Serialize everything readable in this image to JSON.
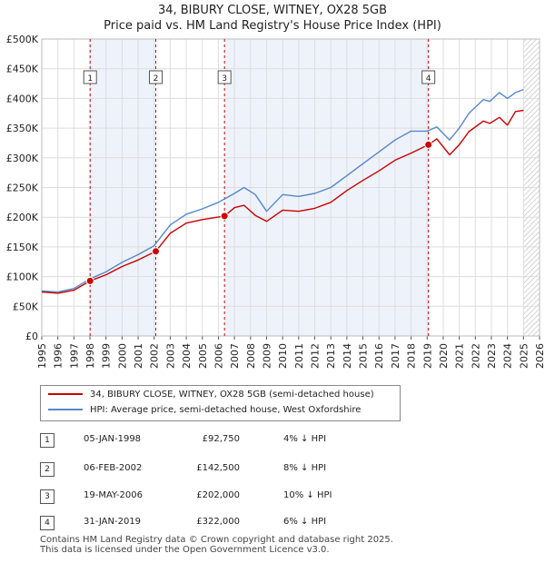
{
  "title": {
    "line1": "34, BIBURY CLOSE, WITNEY, OX28 5GB",
    "line2": "Price paid vs. HM Land Registry's House Price Index (HPI)"
  },
  "chart_data": {
    "type": "line",
    "xlim": [
      1995,
      2026
    ],
    "ylim": [
      0,
      500000
    ],
    "x_ticks": [
      "1995",
      "1996",
      "1997",
      "1998",
      "1999",
      "2000",
      "2001",
      "2002",
      "2003",
      "2004",
      "2005",
      "2006",
      "2007",
      "2008",
      "2009",
      "2010",
      "2011",
      "2012",
      "2013",
      "2014",
      "2015",
      "2016",
      "2017",
      "2018",
      "2019",
      "2020",
      "2021",
      "2022",
      "2023",
      "2024",
      "2025",
      "2026"
    ],
    "y_ticks": [
      {
        "value": 0,
        "label": "£0"
      },
      {
        "value": 50000,
        "label": "£50K"
      },
      {
        "value": 100000,
        "label": "£100K"
      },
      {
        "value": 150000,
        "label": "£150K"
      },
      {
        "value": 200000,
        "label": "£200K"
      },
      {
        "value": 250000,
        "label": "£250K"
      },
      {
        "value": 300000,
        "label": "£300K"
      },
      {
        "value": 350000,
        "label": "£350K"
      },
      {
        "value": 400000,
        "label": "£400K"
      },
      {
        "value": 450000,
        "label": "£450K"
      },
      {
        "value": 500000,
        "label": "£500K"
      }
    ],
    "grid": true,
    "shaded_periods": [
      [
        1998.01,
        2002.1
      ],
      [
        2006.38,
        2019.08
      ]
    ],
    "forecast_hatch_from": 2025.0,
    "colors": {
      "property": "#cc0000",
      "hpi": "#5588cc",
      "shade": "#eef2fb",
      "grid": "#dddddd"
    },
    "series": [
      {
        "name": "34, BIBURY CLOSE, WITNEY, OX28 5GB (semi-detached house)",
        "color": "#cc0000",
        "x": [
          1995.0,
          1996.0,
          1997.0,
          1998.01,
          1999.0,
          2000.0,
          2001.0,
          2002.1,
          2003.0,
          2004.0,
          2005.0,
          2006.38,
          2007.0,
          2007.6,
          2008.3,
          2009.0,
          2010.0,
          2011.0,
          2012.0,
          2013.0,
          2014.0,
          2015.0,
          2016.0,
          2017.0,
          2018.0,
          2019.08,
          2019.6,
          2020.4,
          2021.0,
          2021.6,
          2022.5,
          2022.9,
          2023.5,
          2024.0,
          2024.5,
          2025.0
        ],
        "values": [
          74000,
          72000,
          77000,
          92750,
          103000,
          117000,
          128000,
          142500,
          173000,
          190000,
          196000,
          202000,
          216000,
          220000,
          203000,
          193000,
          212000,
          210000,
          215000,
          225000,
          245000,
          262000,
          278000,
          296000,
          308000,
          322000,
          332000,
          305000,
          322000,
          344000,
          362000,
          358000,
          368000,
          355000,
          378000,
          380000
        ]
      },
      {
        "name": "HPI: Average price, semi-detached house, West Oxfordshire",
        "color": "#5588cc",
        "x": [
          1995.0,
          1996.0,
          1997.0,
          1998.0,
          1999.0,
          2000.0,
          2001.0,
          2002.0,
          2003.0,
          2004.0,
          2005.0,
          2006.0,
          2007.0,
          2007.6,
          2008.3,
          2009.0,
          2010.0,
          2011.0,
          2012.0,
          2013.0,
          2014.0,
          2015.0,
          2016.0,
          2017.0,
          2018.0,
          2019.0,
          2019.6,
          2020.4,
          2021.0,
          2021.6,
          2022.5,
          2022.9,
          2023.5,
          2024.0,
          2024.5,
          2025.0
        ],
        "values": [
          76000,
          74000,
          80000,
          96000,
          108000,
          124000,
          137000,
          152000,
          187000,
          205000,
          214000,
          225000,
          240000,
          250000,
          238000,
          210000,
          238000,
          235000,
          240000,
          250000,
          270000,
          290000,
          310000,
          330000,
          345000,
          345000,
          352000,
          330000,
          350000,
          375000,
          398000,
          395000,
          410000,
          400000,
          410000,
          415000
        ]
      }
    ],
    "sale_markers": [
      {
        "label": "1",
        "x": 1998.01,
        "value": 92750
      },
      {
        "label": "2",
        "x": 2002.1,
        "value": 142500
      },
      {
        "label": "3",
        "x": 2006.38,
        "value": 202000
      },
      {
        "label": "4",
        "x": 2019.08,
        "value": 322000
      }
    ]
  },
  "legend": {
    "property_label": "34, BIBURY CLOSE, WITNEY, OX28 5GB (semi-detached house)",
    "hpi_label": "HPI: Average price, semi-detached house, West Oxfordshire"
  },
  "sales": [
    {
      "num": "1",
      "date": "05-JAN-1998",
      "price": "£92,750",
      "pct": "4% ↓ HPI"
    },
    {
      "num": "2",
      "date": "06-FEB-2002",
      "price": "£142,500",
      "pct": "8% ↓ HPI"
    },
    {
      "num": "3",
      "date": "19-MAY-2006",
      "price": "£202,000",
      "pct": "10% ↓ HPI"
    },
    {
      "num": "4",
      "date": "31-JAN-2019",
      "price": "£322,000",
      "pct": "6% ↓ HPI"
    }
  ],
  "footer": {
    "line1": "Contains HM Land Registry data © Crown copyright and database right 2025.",
    "line2": "This data is licensed under the Open Government Licence v3.0."
  }
}
